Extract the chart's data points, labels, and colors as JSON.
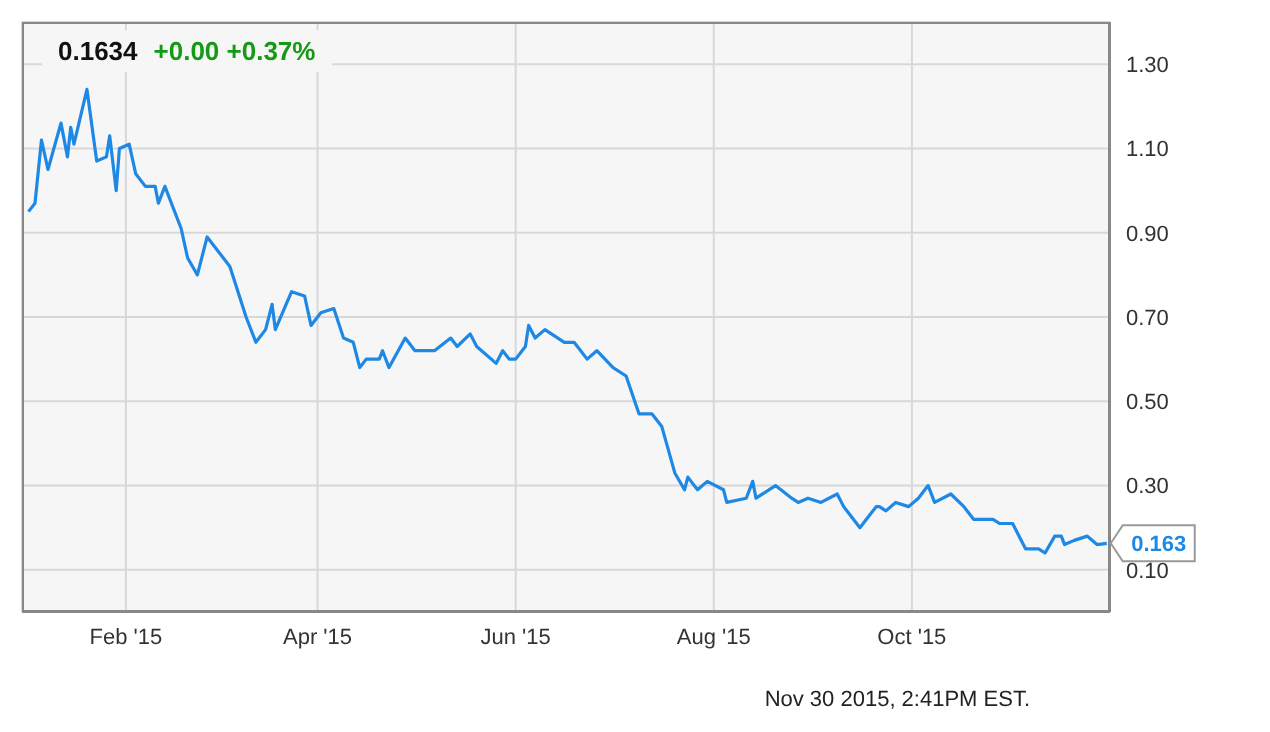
{
  "chart_data": {
    "type": "line",
    "title": "0.1634",
    "subtitle": "+0.00 +0.37%",
    "x": [
      "2015-01-02",
      "2015-01-04",
      "2015-01-06",
      "2015-01-08",
      "2015-01-12",
      "2015-01-14",
      "2015-01-15",
      "2015-01-16",
      "2015-01-20",
      "2015-01-23",
      "2015-01-26",
      "2015-01-27",
      "2015-01-29",
      "2015-01-30",
      "2015-02-02",
      "2015-02-04",
      "2015-02-07",
      "2015-02-10",
      "2015-02-11",
      "2015-02-13",
      "2015-02-18",
      "2015-02-20",
      "2015-02-23",
      "2015-02-26",
      "2015-03-05",
      "2015-03-10",
      "2015-03-13",
      "2015-03-16",
      "2015-03-18",
      "2015-03-19",
      "2015-03-24",
      "2015-03-28",
      "2015-03-30",
      "2015-04-02",
      "2015-04-06",
      "2015-04-09",
      "2015-04-12",
      "2015-04-14",
      "2015-04-16",
      "2015-04-20",
      "2015-04-21",
      "2015-04-23",
      "2015-04-28",
      "2015-05-01",
      "2015-05-07",
      "2015-05-12",
      "2015-05-14",
      "2015-05-18",
      "2015-05-20",
      "2015-05-26",
      "2015-05-28",
      "2015-05-30",
      "2015-06-01",
      "2015-06-04",
      "2015-06-05",
      "2015-06-07",
      "2015-06-10",
      "2015-06-16",
      "2015-06-19",
      "2015-06-23",
      "2015-06-26",
      "2015-07-01",
      "2015-07-05",
      "2015-07-09",
      "2015-07-13",
      "2015-07-16",
      "2015-07-20",
      "2015-07-23",
      "2015-07-24",
      "2015-07-27",
      "2015-07-30",
      "2015-08-04",
      "2015-08-05",
      "2015-08-11",
      "2015-08-13",
      "2015-08-14",
      "2015-08-20",
      "2015-08-25",
      "2015-08-27",
      "2015-08-30",
      "2015-09-03",
      "2015-09-08",
      "2015-09-10",
      "2015-09-15",
      "2015-09-20",
      "2015-09-21",
      "2015-09-23",
      "2015-09-26",
      "2015-09-30",
      "2015-10-03",
      "2015-10-06",
      "2015-10-08",
      "2015-10-13",
      "2015-10-17",
      "2015-10-20",
      "2015-10-26",
      "2015-10-28",
      "2015-11-01",
      "2015-11-05",
      "2015-11-09",
      "2015-11-11",
      "2015-11-14",
      "2015-11-16",
      "2015-11-17",
      "2015-11-20",
      "2015-11-24",
      "2015-11-27",
      "2015-11-30"
    ],
    "series": [
      {
        "color": "#1e88e5",
        "values": [
          0.95,
          0.97,
          1.12,
          1.05,
          1.16,
          1.08,
          1.15,
          1.11,
          1.24,
          1.07,
          1.08,
          1.13,
          1.0,
          1.1,
          1.11,
          1.04,
          1.01,
          1.01,
          0.97,
          1.01,
          0.91,
          0.84,
          0.8,
          0.89,
          0.82,
          0.7,
          0.64,
          0.67,
          0.73,
          0.67,
          0.76,
          0.75,
          0.68,
          0.71,
          0.72,
          0.65,
          0.64,
          0.58,
          0.6,
          0.6,
          0.62,
          0.58,
          0.65,
          0.62,
          0.62,
          0.65,
          0.63,
          0.66,
          0.63,
          0.59,
          0.62,
          0.6,
          0.6,
          0.63,
          0.68,
          0.65,
          0.67,
          0.64,
          0.64,
          0.6,
          0.62,
          0.58,
          0.56,
          0.47,
          0.47,
          0.44,
          0.33,
          0.29,
          0.32,
          0.29,
          0.31,
          0.29,
          0.26,
          0.27,
          0.31,
          0.27,
          0.3,
          0.27,
          0.26,
          0.27,
          0.26,
          0.28,
          0.25,
          0.2,
          0.25,
          0.25,
          0.24,
          0.26,
          0.25,
          0.27,
          0.3,
          0.26,
          0.28,
          0.25,
          0.22,
          0.22,
          0.21,
          0.21,
          0.15,
          0.15,
          0.14,
          0.18,
          0.18,
          0.16,
          0.17,
          0.18,
          0.16,
          0.163
        ]
      }
    ],
    "xlim": [
      "2014-12-31",
      "2015-12-01"
    ],
    "xticks": [
      {
        "value": "2015-02-01",
        "label": "Feb '15"
      },
      {
        "value": "2015-04-01",
        "label": "Apr '15"
      },
      {
        "value": "2015-06-01",
        "label": "Jun '15"
      },
      {
        "value": "2015-08-01",
        "label": "Aug '15"
      },
      {
        "value": "2015-10-01",
        "label": "Oct '15"
      }
    ],
    "ylim": [
      0,
      1.4
    ],
    "yticks": [
      {
        "value": 0.1,
        "label": "0.10"
      },
      {
        "value": 0.3,
        "label": "0.30"
      },
      {
        "value": 0.5,
        "label": "0.50"
      },
      {
        "value": 0.7,
        "label": "0.70"
      },
      {
        "value": 0.9,
        "label": "0.90"
      },
      {
        "value": 1.1,
        "label": "1.10"
      },
      {
        "value": 1.3,
        "label": "1.30"
      }
    ],
    "grid": true,
    "legend": false,
    "marker": "none",
    "annotations": [
      {
        "text": "0.163",
        "x": "2015-11-30",
        "y": 0.163
      },
      "Nov 30 2015, 2:41PM EST."
    ]
  }
}
